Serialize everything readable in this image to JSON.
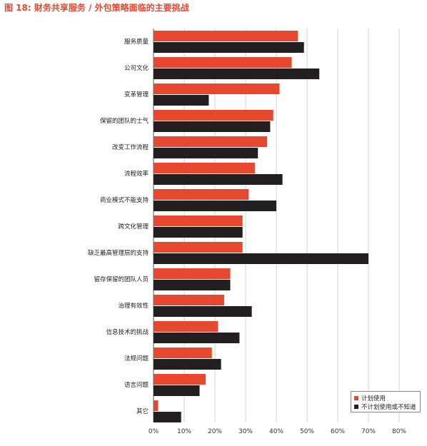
{
  "chart_data": {
    "type": "bar",
    "orientation": "horizontal",
    "title": "图 18: 财务共享服务 / 外包策略面临的主要挑战",
    "categories": [
      "服务质量",
      "公司文化",
      "变革管理",
      "保留的团队的士气",
      "改变工作流程",
      "流程效率",
      "商业模式不能支持",
      "跨文化管理",
      "缺乏最高管理层的支持",
      "留存保留的团队人员",
      "治理有效性",
      "信息技术的挑战",
      "法规问题",
      "语言问题",
      "其它"
    ],
    "series": [
      {
        "name": "计划使用",
        "color": "#e8472f",
        "values": [
          47,
          45,
          41,
          39,
          37,
          33,
          31,
          29,
          29,
          25,
          23,
          21,
          19,
          17,
          1.5
        ]
      },
      {
        "name": "不计划使用或不知道",
        "color": "#231f20",
        "values": [
          49,
          54,
          18,
          38,
          34,
          42,
          40,
          29,
          70,
          25,
          32,
          28,
          22,
          15,
          9
        ]
      }
    ],
    "xticks": [
      "0%",
      "10%",
      "20%",
      "30%",
      "40%",
      "50%",
      "60%",
      "70%",
      "80%"
    ],
    "xlim": [
      0,
      80
    ],
    "grid": true,
    "legend_position": "bottom-right"
  }
}
